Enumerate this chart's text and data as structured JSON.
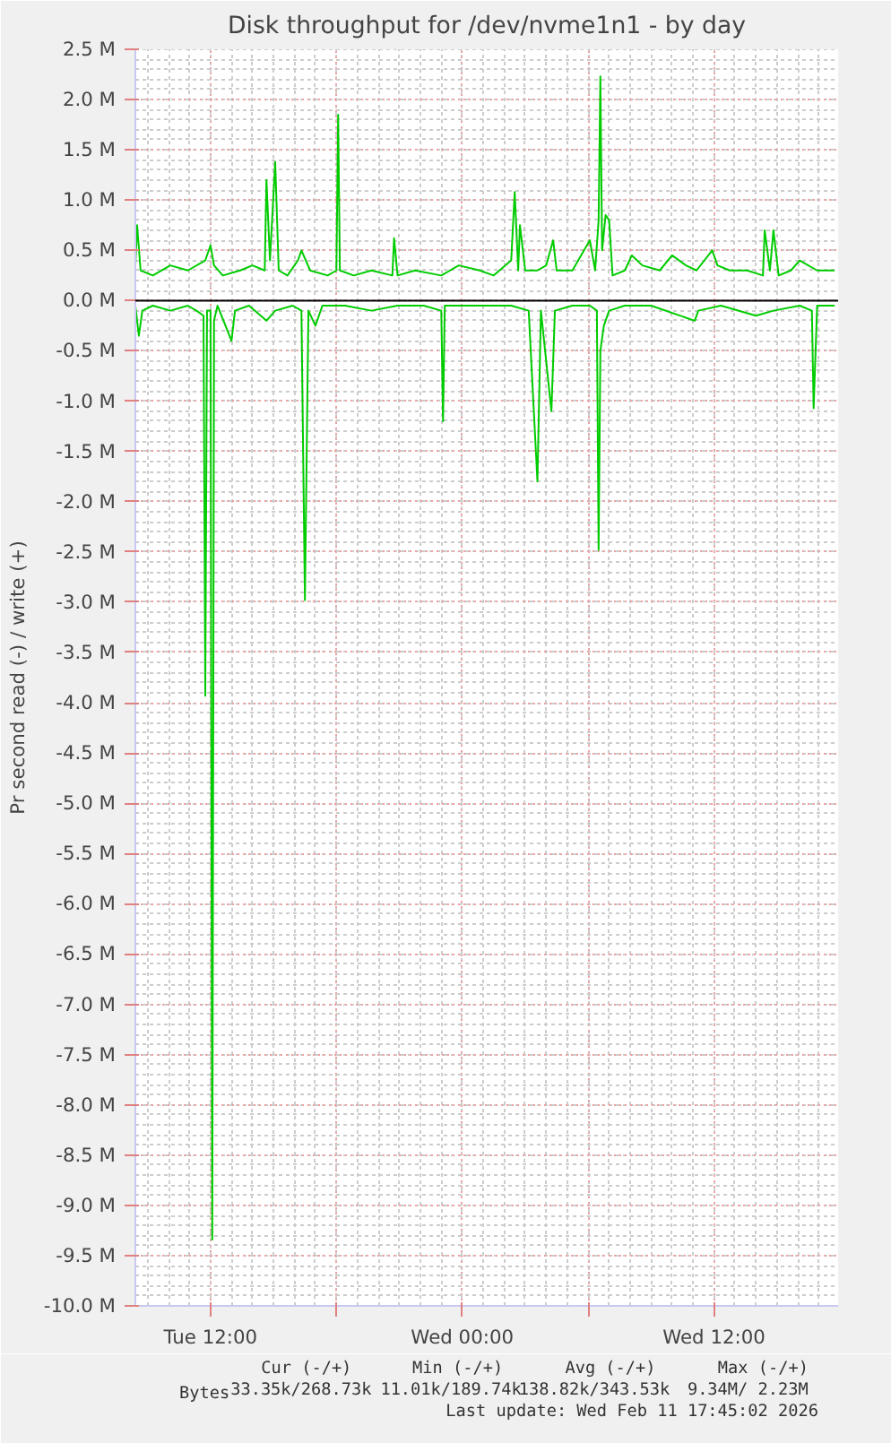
{
  "chart_data": {
    "type": "line",
    "title": "Disk throughput for /dev/nvme1n1 - by day",
    "ylabel": "Pr second read (-) / write (+)",
    "xlim": [
      "2026-02-10T08:25",
      "2026-02-11T17:55"
    ],
    "ylim": [
      -10.0,
      2.5
    ],
    "xticks": [
      {
        "value": "2026-02-10T12:00",
        "label": "Tue 12:00"
      },
      {
        "value": "2026-02-10T18:00",
        "label": null
      },
      {
        "value": "2026-02-11T00:00",
        "label": "Wed 00:00"
      },
      {
        "value": "2026-02-11T06:00",
        "label": null
      },
      {
        "value": "2026-02-11T12:00",
        "label": "Wed 12:00"
      }
    ],
    "yticks": [
      {
        "value": 2.5,
        "label": "2.5 M"
      },
      {
        "value": 2.0,
        "label": "2.0 M"
      },
      {
        "value": 1.5,
        "label": "1.5 M"
      },
      {
        "value": 1.0,
        "label": "1.0 M"
      },
      {
        "value": 0.5,
        "label": "0.5 M"
      },
      {
        "value": 0.0,
        "label": "0.0 M"
      },
      {
        "value": -0.5,
        "label": "-0.5 M"
      },
      {
        "value": -1.0,
        "label": "-1.0 M"
      },
      {
        "value": -1.5,
        "label": "-1.5 M"
      },
      {
        "value": -2.0,
        "label": "-2.0 M"
      },
      {
        "value": -2.5,
        "label": "-2.5 M"
      },
      {
        "value": -3.0,
        "label": "-3.0 M"
      },
      {
        "value": -3.5,
        "label": "-3.5 M"
      },
      {
        "value": -4.0,
        "label": "-4.0 M"
      },
      {
        "value": -4.5,
        "label": "-4.5 M"
      },
      {
        "value": -5.0,
        "label": "-5.0 M"
      },
      {
        "value": -5.5,
        "label": "-5.5 M"
      },
      {
        "value": -6.0,
        "label": "-6.0 M"
      },
      {
        "value": -6.5,
        "label": "-6.5 M"
      },
      {
        "value": -7.0,
        "label": "-7.0 M"
      },
      {
        "value": -7.5,
        "label": "-7.5 M"
      },
      {
        "value": -8.0,
        "label": "-8.0 M"
      },
      {
        "value": -8.5,
        "label": "-8.5 M"
      },
      {
        "value": -9.0,
        "label": "-9.0 M"
      },
      {
        "value": -9.5,
        "label": "-9.5 M"
      },
      {
        "value": -10.0,
        "label": "-10.0 M"
      }
    ],
    "grid": true,
    "legend": "bottom",
    "marker": "none",
    "line_style": "solid",
    "ref_lines": [
      {
        "axis": "y",
        "value": 0.0,
        "label": null,
        "color": "#000000"
      }
    ],
    "series": [
      {
        "name": "Bytes",
        "color": "#00cc00",
        "x": [
          "2026-02-10T08:25",
          "2026-02-10T08:30",
          "2026-02-10T08:40",
          "2026-02-10T09:15",
          "2026-02-10T10:05",
          "2026-02-10T10:55",
          "2026-02-10T11:45",
          "2026-02-10T12:00",
          "2026-02-10T12:10",
          "2026-02-10T12:35",
          "2026-02-10T13:25",
          "2026-02-10T14:00",
          "2026-02-10T14:35",
          "2026-02-10T14:40",
          "2026-02-10T14:50",
          "2026-02-10T15:05",
          "2026-02-10T15:15",
          "2026-02-10T15:40",
          "2026-02-10T16:10",
          "2026-02-10T16:20",
          "2026-02-10T16:45",
          "2026-02-10T17:35",
          "2026-02-10T18:00",
          "2026-02-10T18:05",
          "2026-02-10T18:10",
          "2026-02-10T18:50",
          "2026-02-10T19:40",
          "2026-02-10T20:40",
          "2026-02-10T20:45",
          "2026-02-10T20:55",
          "2026-02-10T21:45",
          "2026-02-10T23:00",
          "2026-02-10T23:50",
          "2026-02-11T00:50",
          "2026-02-11T01:30",
          "2026-02-11T02:20",
          "2026-02-11T02:30",
          "2026-02-11T02:40",
          "2026-02-11T02:45",
          "2026-02-11T03:00",
          "2026-02-11T03:35",
          "2026-02-11T04:00",
          "2026-02-11T04:20",
          "2026-02-11T04:30",
          "2026-02-11T05:15",
          "2026-02-11T06:05",
          "2026-02-11T06:20",
          "2026-02-11T06:30",
          "2026-02-11T06:35",
          "2026-02-11T06:40",
          "2026-02-11T06:50",
          "2026-02-11T07:00",
          "2026-02-11T07:10",
          "2026-02-11T07:45",
          "2026-02-11T08:05",
          "2026-02-11T08:35",
          "2026-02-11T09:25",
          "2026-02-11T10:00",
          "2026-02-11T10:40",
          "2026-02-11T11:10",
          "2026-02-11T11:55",
          "2026-02-11T12:10",
          "2026-02-11T12:45",
          "2026-02-11T13:35",
          "2026-02-11T14:20",
          "2026-02-11T14:25",
          "2026-02-11T14:40",
          "2026-02-11T14:50",
          "2026-02-11T15:05",
          "2026-02-11T15:40",
          "2026-02-11T16:05",
          "2026-02-11T16:55",
          "2026-02-11T17:45"
        ],
        "values": [
          0.35,
          0.75,
          0.3,
          0.25,
          0.35,
          0.3,
          0.4,
          0.55,
          0.35,
          0.25,
          0.3,
          0.35,
          0.3,
          1.2,
          0.4,
          1.38,
          0.3,
          0.25,
          0.4,
          0.5,
          0.3,
          0.25,
          0.3,
          1.85,
          0.3,
          0.25,
          0.3,
          0.25,
          0.62,
          0.25,
          0.3,
          0.25,
          0.35,
          0.3,
          0.25,
          0.4,
          1.08,
          0.3,
          0.75,
          0.3,
          0.3,
          0.35,
          0.6,
          0.3,
          0.3,
          0.6,
          0.3,
          0.8,
          2.23,
          0.5,
          0.85,
          0.8,
          0.25,
          0.3,
          0.45,
          0.35,
          0.3,
          0.45,
          0.35,
          0.3,
          0.5,
          0.35,
          0.3,
          0.3,
          0.25,
          0.7,
          0.3,
          0.7,
          0.25,
          0.3,
          0.4,
          0.3,
          0.3
        ]
      },
      {
        "color": "#00cc00",
        "x": [
          "2026-02-10T08:25",
          "2026-02-10T08:35",
          "2026-02-10T08:45",
          "2026-02-10T09:15",
          "2026-02-10T10:05",
          "2026-02-10T10:55",
          "2026-02-10T11:20",
          "2026-02-10T11:40",
          "2026-02-10T11:45",
          "2026-02-10T11:50",
          "2026-02-10T12:00",
          "2026-02-10T12:05",
          "2026-02-10T12:10",
          "2026-02-10T12:20",
          "2026-02-10T13:00",
          "2026-02-10T13:10",
          "2026-02-10T13:50",
          "2026-02-10T14:40",
          "2026-02-10T15:05",
          "2026-02-10T15:55",
          "2026-02-10T16:20",
          "2026-02-10T16:30",
          "2026-02-10T16:40",
          "2026-02-10T17:00",
          "2026-02-10T17:20",
          "2026-02-10T18:25",
          "2026-02-10T19:40",
          "2026-02-10T20:55",
          "2026-02-10T22:10",
          "2026-02-10T23:00",
          "2026-02-10T23:05",
          "2026-02-10T23:10",
          "2026-02-10T23:50",
          "2026-02-11T01:05",
          "2026-02-11T02:20",
          "2026-02-11T03:10",
          "2026-02-11T03:35",
          "2026-02-11T03:45",
          "2026-02-11T04:15",
          "2026-02-11T04:25",
          "2026-02-11T05:15",
          "2026-02-11T06:05",
          "2026-02-11T06:25",
          "2026-02-11T06:30",
          "2026-02-11T06:35",
          "2026-02-11T06:45",
          "2026-02-11T07:00",
          "2026-02-11T07:45",
          "2026-02-11T09:00",
          "2026-02-11T11:05",
          "2026-02-11T11:15",
          "2026-02-11T12:20",
          "2026-02-11T14:00",
          "2026-02-11T14:50",
          "2026-02-11T16:05",
          "2026-02-11T16:40",
          "2026-02-11T16:45",
          "2026-02-11T16:55",
          "2026-02-11T17:45"
        ],
        "values": [
          -0.05,
          -0.35,
          -0.1,
          -0.05,
          -0.1,
          -0.05,
          -0.1,
          -0.15,
          -3.93,
          -0.1,
          -0.1,
          -9.34,
          -0.2,
          -0.05,
          -0.4,
          -0.1,
          -0.05,
          -0.2,
          -0.1,
          -0.05,
          -0.1,
          -2.98,
          -0.1,
          -0.25,
          -0.05,
          -0.05,
          -0.1,
          -0.05,
          -0.05,
          -0.1,
          -1.2,
          -0.05,
          -0.05,
          -0.05,
          -0.05,
          -0.1,
          -1.8,
          -0.1,
          -1.1,
          -0.1,
          -0.05,
          -0.05,
          -0.1,
          -2.48,
          -0.5,
          -0.25,
          -0.1,
          -0.05,
          -0.05,
          -0.2,
          -0.1,
          -0.05,
          -0.15,
          -0.1,
          -0.05,
          -0.1,
          -1.07,
          -0.05,
          -0.05
        ]
      }
    ],
    "annotations": [
      "Cur (-/+)",
      "Min (-/+)",
      "Avg (-/+)",
      "Max (-/+)",
      "33.35k/268.73k",
      "11.01k/189.74k",
      "138.82k/343.53k",
      "9.34M/  2.23M",
      "Last update: Wed Feb 11 17:45:02 2026"
    ]
  }
}
